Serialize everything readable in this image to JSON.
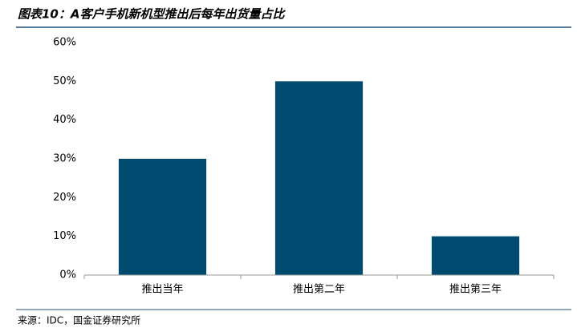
{
  "chart_data": {
    "type": "bar",
    "title": "图表10：A客户手机新机型推出后每年出货量占比",
    "source": "来源：IDC，国金证券研究所",
    "categories": [
      "推出当年",
      "推出第二年",
      "推出第三年"
    ],
    "values": [
      30,
      50,
      10
    ],
    "color": "#024b70",
    "ylim": [
      0,
      60
    ],
    "yticks": [
      {
        "value": 0,
        "label": "0%"
      },
      {
        "value": 10,
        "label": "10%"
      },
      {
        "value": 20,
        "label": "20%"
      },
      {
        "value": 30,
        "label": "30%"
      },
      {
        "value": 40,
        "label": "40%"
      },
      {
        "value": 50,
        "label": "50%"
      },
      {
        "value": 60,
        "label": "60%"
      }
    ],
    "grid": false
  }
}
